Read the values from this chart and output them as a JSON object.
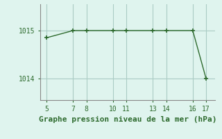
{
  "x": [
    5,
    7,
    8,
    10,
    11,
    13,
    14,
    16,
    17
  ],
  "y": [
    1014.85,
    1015.0,
    1015.0,
    1015.0,
    1015.0,
    1015.0,
    1015.0,
    1015.0,
    1014.0
  ],
  "line_color": "#2d6a2d",
  "marker": "+",
  "marker_color": "#2d6a2d",
  "bg_color": "#dff4ee",
  "grid_color": "#aaccc4",
  "xlabel": "Graphe pression niveau de la mer (hPa)",
  "xlabel_color": "#2d6a2d",
  "ylabel_ticks": [
    1014,
    1015
  ],
  "xticks": [
    5,
    7,
    8,
    10,
    11,
    13,
    14,
    16,
    17
  ],
  "xlim": [
    4.5,
    17.7
  ],
  "ylim": [
    1013.55,
    1015.55
  ],
  "tick_color": "#2d6a2d",
  "spine_color": "#888888",
  "font_size": 7,
  "xlabel_fontsize": 8,
  "marker_size": 5,
  "linewidth": 1.0
}
